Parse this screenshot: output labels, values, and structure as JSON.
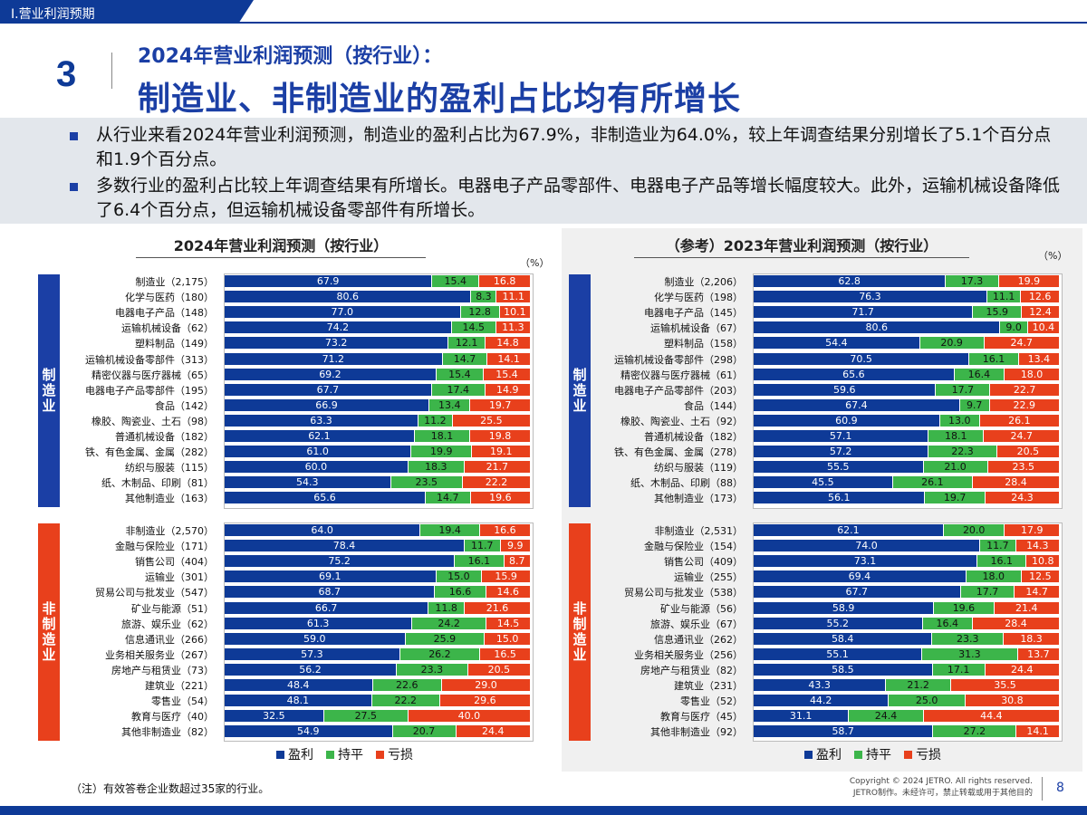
{
  "header": {
    "tab_label": "Ⅰ.营业利润预期",
    "section_number": "3",
    "title_line1": "2024年营业利润预测（按行业）：",
    "title_line2": "制造业、非制造业的盈利占比均有所增长"
  },
  "summary": {
    "bullet1": "从行业来看2024年营业利润预测，制造业的盈利占比为67.9%，非制造业为64.0%，较上年调查结果分别增长了5.1个百分点和1.9个百分点。",
    "bullet2": "多数行业的盈利占比较上年调查结果有所增长。电器电子产品零部件、电器电子产品等增长幅度较大。此外，运输机械设备降低了6.4个百分点，但运输机械设备零部件有所增长。"
  },
  "colors": {
    "profit": "#0e3a97",
    "flat": "#3cb54a",
    "loss": "#e8401c",
    "accent": "#1b3fa5"
  },
  "chart_data": [
    {
      "type": "bar",
      "stacked": true,
      "orientation": "horizontal",
      "title": "2024年营业利润预测（按行业）",
      "unit": "（%）",
      "xlim": [
        0,
        100
      ],
      "legend": [
        "盈利",
        "持平",
        "亏损"
      ],
      "groups": [
        {
          "name": "制造业",
          "categories": [
            "制造业（2,175）",
            "化学与医药（180）",
            "电器电子产品（148）",
            "运输机械设备（62）",
            "塑料制品（149）",
            "运输机械设备零部件（313）",
            "精密仪器与医疗器械（65）",
            "电器电子产品零部件（195）",
            "食品（142）",
            "橡胶、陶瓷业、土石（98）",
            "普通机械设备（182）",
            "铁、有色金属、金属（282）",
            "纺织与服装（115）",
            "纸、木制品、印刷（81）",
            "其他制造业（163）"
          ],
          "series": [
            {
              "name": "盈利",
              "values": [
                67.9,
                80.6,
                77.0,
                74.2,
                73.2,
                71.2,
                69.2,
                67.7,
                66.9,
                63.3,
                62.1,
                61.0,
                60.0,
                54.3,
                65.6
              ]
            },
            {
              "name": "持平",
              "values": [
                15.4,
                8.3,
                12.8,
                14.5,
                12.1,
                14.7,
                15.4,
                17.4,
                13.4,
                11.2,
                18.1,
                19.9,
                18.3,
                23.5,
                14.7
              ]
            },
            {
              "name": "亏损",
              "values": [
                16.8,
                11.1,
                10.1,
                11.3,
                14.8,
                14.1,
                15.4,
                14.9,
                19.7,
                25.5,
                19.8,
                19.1,
                21.7,
                22.2,
                19.6
              ]
            }
          ]
        },
        {
          "name": "非制造业",
          "categories": [
            "非制造业（2,570）",
            "金融与保险业（171）",
            "销售公司（404）",
            "运输业（301）",
            "贸易公司与批发业（547）",
            "矿业与能源（51）",
            "旅游、娱乐业（62）",
            "信息通讯业（266）",
            "业务相关服务业（267）",
            "房地产与租赁业（73）",
            "建筑业（221）",
            "零售业（54）",
            "教育与医疗（40）",
            "其他非制造业（82）"
          ],
          "series": [
            {
              "name": "盈利",
              "values": [
                64.0,
                78.4,
                75.2,
                69.1,
                68.7,
                66.7,
                61.3,
                59.0,
                57.3,
                56.2,
                48.4,
                48.1,
                32.5,
                54.9
              ]
            },
            {
              "name": "持平",
              "values": [
                19.4,
                11.7,
                16.1,
                15.0,
                16.6,
                11.8,
                24.2,
                25.9,
                26.2,
                23.3,
                22.6,
                22.2,
                27.5,
                20.7
              ]
            },
            {
              "name": "亏损",
              "values": [
                16.6,
                9.9,
                8.7,
                15.9,
                14.6,
                21.6,
                14.5,
                15.0,
                16.5,
                20.5,
                29.0,
                29.6,
                40.0,
                24.4
              ]
            }
          ]
        }
      ]
    },
    {
      "type": "bar",
      "stacked": true,
      "orientation": "horizontal",
      "title": "（参考）2023年营业利润预测（按行业）",
      "unit": "（%）",
      "xlim": [
        0,
        100
      ],
      "legend": [
        "盈利",
        "持平",
        "亏损"
      ],
      "groups": [
        {
          "name": "制造业",
          "categories": [
            "制造业（2,206）",
            "化学与医药（198）",
            "电器电子产品（145）",
            "运输机械设备（67）",
            "塑料制品（158）",
            "运输机械设备零部件（298）",
            "精密仪器与医疗器械（61）",
            "电器电子产品零部件（203）",
            "食品（144）",
            "橡胶、陶瓷业、土石（92）",
            "普通机械设备（182）",
            "铁、有色金属、金属（278）",
            "纺织与服装（119）",
            "纸、木制品、印刷（88）",
            "其他制造业（173）"
          ],
          "series": [
            {
              "name": "盈利",
              "values": [
                62.8,
                76.3,
                71.7,
                80.6,
                54.4,
                70.5,
                65.6,
                59.6,
                67.4,
                60.9,
                57.1,
                57.2,
                55.5,
                45.5,
                56.1
              ]
            },
            {
              "name": "持平",
              "values": [
                17.3,
                11.1,
                15.9,
                9.0,
                20.9,
                16.1,
                16.4,
                17.7,
                9.7,
                13.0,
                18.1,
                22.3,
                21.0,
                26.1,
                19.7
              ]
            },
            {
              "name": "亏损",
              "values": [
                19.9,
                12.6,
                12.4,
                10.4,
                24.7,
                13.4,
                18.0,
                22.7,
                22.9,
                26.1,
                24.7,
                20.5,
                23.5,
                28.4,
                24.3
              ]
            }
          ]
        },
        {
          "name": "非制造业",
          "categories": [
            "非制造业（2,531）",
            "金融与保险业（154）",
            "销售公司（409）",
            "运输业（255）",
            "贸易公司与批发业（538）",
            "矿业与能源（56）",
            "旅游、娱乐业（67）",
            "信息通讯业（262）",
            "业务相关服务业（256）",
            "房地产与租赁业（82）",
            "建筑业（231）",
            "零售业（52）",
            "教育与医疗（45）",
            "其他非制造业（92）"
          ],
          "series": [
            {
              "name": "盈利",
              "values": [
                62.1,
                74.0,
                73.1,
                69.4,
                67.7,
                58.9,
                55.2,
                58.4,
                55.1,
                58.5,
                43.3,
                44.2,
                31.1,
                58.7
              ]
            },
            {
              "name": "持平",
              "values": [
                20.0,
                11.7,
                16.1,
                18.0,
                17.7,
                19.6,
                16.4,
                23.3,
                31.3,
                17.1,
                21.2,
                25.0,
                24.4,
                27.2
              ]
            },
            {
              "name": "亏损",
              "values": [
                17.9,
                14.3,
                10.8,
                12.5,
                14.7,
                21.4,
                28.4,
                18.3,
                13.7,
                24.4,
                35.5,
                30.8,
                44.4,
                14.1
              ]
            }
          ]
        }
      ]
    }
  ],
  "footer": {
    "note": "（注）有效答卷企业数超过35家的行业。",
    "copyright_line1": "Copyright © 2024 JETRO. All rights reserved.",
    "copyright_line2": "JETRO制作。未经许可，禁止转载或用于其他目的",
    "page_number": "8"
  }
}
